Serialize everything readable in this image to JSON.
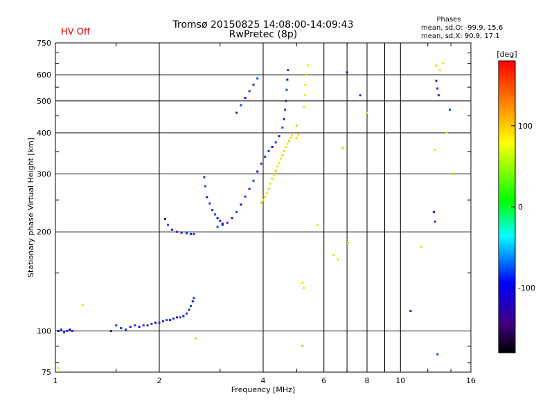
{
  "header": {
    "title_line1": "Tromsø 20150825  14:08:00-14:09:43",
    "title_line2": "RwPretec (8p)",
    "status": "HV Off",
    "phase_title": "Phases",
    "phase_o": "mean, sd,O: -99.9, 15.6",
    "phase_x": "mean, sd,X:  90.9, 17.1"
  },
  "chart_data": {
    "type": "scatter",
    "title": "Tromsø 20150825  14:08:00-14:09:43",
    "subtitle": "RwPretec (8p)",
    "xlabel": "Frequency [MHz]",
    "ylabel": "Stationary phase Virtual Height [km]",
    "xscale": "log",
    "yscale": "log",
    "xlim": [
      1,
      16
    ],
    "ylim": [
      75,
      750
    ],
    "xticks": [
      1,
      2,
      4,
      6,
      8,
      10,
      16
    ],
    "xtick_labels": [
      "1",
      "2",
      "4",
      "6",
      "8",
      "10",
      "16"
    ],
    "yticks": [
      75,
      100,
      200,
      300,
      400,
      500,
      600,
      750
    ],
    "ytick_labels": [
      "75",
      "100",
      "200",
      "300",
      "400",
      "500",
      "600",
      "750"
    ],
    "grid": true,
    "colorbar": {
      "label": "[deg]",
      "range": [
        -180,
        180
      ],
      "ticks": [
        100,
        0,
        -100
      ],
      "tick_labels": [
        "100",
        "0",
        "-100"
      ]
    },
    "series": [
      {
        "trace": "o",
        "points": [
          [
            1.02,
            100
          ],
          [
            1.04,
            101
          ],
          [
            1.06,
            99
          ],
          [
            1.08,
            100
          ],
          [
            1.1,
            101
          ],
          [
            1.12,
            100
          ],
          [
            1.45,
            100
          ],
          [
            1.5,
            104
          ],
          [
            1.55,
            102
          ],
          [
            1.6,
            101
          ],
          [
            1.65,
            103
          ],
          [
            1.7,
            104
          ],
          [
            1.75,
            103
          ],
          [
            1.8,
            104
          ],
          [
            1.85,
            104
          ],
          [
            1.9,
            105
          ],
          [
            1.95,
            106
          ],
          [
            2.0,
            106
          ],
          [
            2.05,
            107
          ],
          [
            2.1,
            108
          ],
          [
            2.15,
            108
          ],
          [
            2.2,
            109
          ],
          [
            2.25,
            110
          ],
          [
            2.3,
            110
          ],
          [
            2.35,
            111
          ],
          [
            2.4,
            113
          ],
          [
            2.44,
            116
          ],
          [
            2.47,
            119
          ],
          [
            2.5,
            123
          ],
          [
            2.52,
            126
          ],
          [
            2.08,
            219
          ],
          [
            2.12,
            210
          ],
          [
            2.18,
            203
          ],
          [
            2.25,
            200
          ],
          [
            2.32,
            199
          ],
          [
            2.4,
            198
          ],
          [
            2.47,
            197
          ],
          [
            2.52,
            197
          ],
          [
            2.7,
            293
          ],
          [
            2.72,
            275
          ],
          [
            2.75,
            255
          ],
          [
            2.8,
            244
          ],
          [
            2.85,
            233
          ],
          [
            2.9,
            226
          ],
          [
            2.95,
            220
          ],
          [
            3.0,
            216
          ],
          [
            3.05,
            212
          ],
          [
            2.95,
            207
          ],
          [
            3.05,
            210
          ],
          [
            3.15,
            213
          ],
          [
            3.25,
            220
          ],
          [
            3.35,
            230
          ],
          [
            3.45,
            242
          ],
          [
            3.55,
            256
          ],
          [
            3.65,
            270
          ],
          [
            3.75,
            286
          ],
          [
            3.85,
            305
          ],
          [
            3.95,
            322
          ],
          [
            4.05,
            338
          ],
          [
            4.15,
            352
          ],
          [
            4.25,
            362
          ],
          [
            4.35,
            374
          ],
          [
            4.45,
            391
          ],
          [
            4.55,
            415
          ],
          [
            4.6,
            440
          ],
          [
            4.63,
            470
          ],
          [
            4.66,
            500
          ],
          [
            4.68,
            540
          ],
          [
            4.7,
            580
          ],
          [
            4.72,
            620
          ],
          [
            3.35,
            460
          ],
          [
            3.45,
            485
          ],
          [
            3.55,
            510
          ],
          [
            3.65,
            535
          ],
          [
            3.75,
            560
          ],
          [
            3.85,
            585
          ],
          [
            7.0,
            610
          ],
          [
            7.65,
            520
          ],
          [
            10.7,
            115
          ],
          [
            12.8,
            85
          ],
          [
            12.7,
            575
          ],
          [
            12.8,
            545
          ],
          [
            12.9,
            520
          ],
          [
            13.9,
            470
          ],
          [
            12.5,
            230
          ],
          [
            12.6,
            215
          ]
        ]
      },
      {
        "trace": "x",
        "points": [
          [
            3.95,
            245
          ],
          [
            4.0,
            250
          ],
          [
            4.05,
            255
          ],
          [
            4.1,
            262
          ],
          [
            4.15,
            270
          ],
          [
            4.2,
            280
          ],
          [
            4.25,
            290
          ],
          [
            4.3,
            298
          ],
          [
            4.35,
            306
          ],
          [
            4.4,
            316
          ],
          [
            4.45,
            324
          ],
          [
            4.5,
            334
          ],
          [
            4.55,
            342
          ],
          [
            4.6,
            352
          ],
          [
            4.65,
            362
          ],
          [
            4.7,
            370
          ],
          [
            4.75,
            378
          ],
          [
            4.8,
            386
          ],
          [
            4.85,
            392
          ],
          [
            5.4,
            640
          ],
          [
            5.35,
            600
          ],
          [
            5.3,
            560
          ],
          [
            5.28,
            520
          ],
          [
            5.25,
            480
          ],
          [
            5.0,
            420
          ],
          [
            5.0,
            385
          ],
          [
            5.05,
            395
          ],
          [
            1.2,
            120
          ],
          [
            2.55,
            95
          ],
          [
            1.02,
            77
          ],
          [
            5.2,
            140
          ],
          [
            5.25,
            135
          ],
          [
            5.2,
            90
          ],
          [
            5.75,
            210
          ],
          [
            6.4,
            170
          ],
          [
            6.6,
            165
          ],
          [
            6.8,
            360
          ],
          [
            7.05,
            185
          ],
          [
            8.0,
            460
          ],
          [
            11.5,
            180
          ],
          [
            12.7,
            640
          ],
          [
            13.3,
            650
          ],
          [
            13.0,
            620
          ],
          [
            12.6,
            355
          ],
          [
            14.2,
            300
          ],
          [
            13.6,
            400
          ]
        ]
      }
    ]
  }
}
